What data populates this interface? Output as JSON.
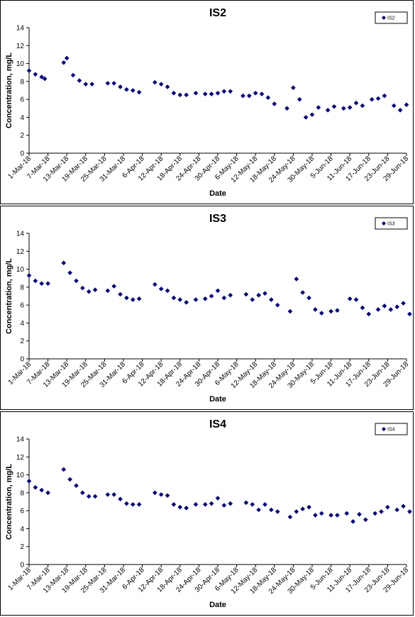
{
  "chart_data": [
    {
      "type": "scatter",
      "title": "IS2",
      "xlabel": "Date",
      "ylabel": "Concentration, mg/L",
      "ylim": [
        0,
        14
      ],
      "yticks": [
        0,
        2,
        4,
        6,
        8,
        10,
        12,
        14
      ],
      "xlim": [
        "1-Mar-18",
        "29-Jun-18"
      ],
      "xticks": [
        "1-Mar-18",
        "7-Mar-18",
        "13-Mar-18",
        "19-Mar-18",
        "25-Mar-18",
        "31-Mar-18",
        "6-Apr-18",
        "12-Apr-18",
        "18-Apr-18",
        "24-Apr-18",
        "30-Apr-18",
        "6-May-18",
        "12-May-18",
        "18-May-18",
        "24-May-18",
        "30-May-18",
        "5-Jun-18",
        "11-Jun-18",
        "17-Jun-18",
        "23-Jun-18",
        "29-Jun-18"
      ],
      "grid": false,
      "legend_position": "top-right",
      "marker_color": "#000080",
      "series": [
        {
          "name": "IS2",
          "points": [
            {
              "x": "1-Mar-18",
              "y": 9.2
            },
            {
              "x": "3-Mar-18",
              "y": 8.8
            },
            {
              "x": "5-Mar-18",
              "y": 8.5
            },
            {
              "x": "6-Mar-18",
              "y": 8.3
            },
            {
              "x": "12-Mar-18",
              "y": 10.1
            },
            {
              "x": "13-Mar-18",
              "y": 10.6
            },
            {
              "x": "15-Mar-18",
              "y": 8.7
            },
            {
              "x": "17-Mar-18",
              "y": 8.1
            },
            {
              "x": "19-Mar-18",
              "y": 7.7
            },
            {
              "x": "21-Mar-18",
              "y": 7.7
            },
            {
              "x": "26-Mar-18",
              "y": 7.8
            },
            {
              "x": "28-Mar-18",
              "y": 7.8
            },
            {
              "x": "30-Mar-18",
              "y": 7.4
            },
            {
              "x": "1-Apr-18",
              "y": 7.1
            },
            {
              "x": "3-Apr-18",
              "y": 7.0
            },
            {
              "x": "5-Apr-18",
              "y": 6.8
            },
            {
              "x": "10-Apr-18",
              "y": 7.9
            },
            {
              "x": "12-Apr-18",
              "y": 7.7
            },
            {
              "x": "14-Apr-18",
              "y": 7.4
            },
            {
              "x": "16-Apr-18",
              "y": 6.7
            },
            {
              "x": "18-Apr-18",
              "y": 6.5
            },
            {
              "x": "20-Apr-18",
              "y": 6.5
            },
            {
              "x": "23-Apr-18",
              "y": 6.7
            },
            {
              "x": "26-Apr-18",
              "y": 6.6
            },
            {
              "x": "28-Apr-18",
              "y": 6.6
            },
            {
              "x": "30-Apr-18",
              "y": 6.7
            },
            {
              "x": "2-May-18",
              "y": 6.9
            },
            {
              "x": "4-May-18",
              "y": 6.9
            },
            {
              "x": "8-May-18",
              "y": 6.4
            },
            {
              "x": "10-May-18",
              "y": 6.4
            },
            {
              "x": "12-May-18",
              "y": 6.7
            },
            {
              "x": "14-May-18",
              "y": 6.6
            },
            {
              "x": "16-May-18",
              "y": 6.2
            },
            {
              "x": "18-May-18",
              "y": 5.5
            },
            {
              "x": "22-May-18",
              "y": 5.0
            },
            {
              "x": "24-May-18",
              "y": 7.3
            },
            {
              "x": "26-May-18",
              "y": 6.0
            },
            {
              "x": "28-May-18",
              "y": 4.0
            },
            {
              "x": "30-May-18",
              "y": 4.3
            },
            {
              "x": "1-Jun-18",
              "y": 5.1
            },
            {
              "x": "4-Jun-18",
              "y": 4.8
            },
            {
              "x": "6-Jun-18",
              "y": 5.2
            },
            {
              "x": "9-Jun-18",
              "y": 5.0
            },
            {
              "x": "11-Jun-18",
              "y": 5.1
            },
            {
              "x": "13-Jun-18",
              "y": 5.6
            },
            {
              "x": "15-Jun-18",
              "y": 5.3
            },
            {
              "x": "18-Jun-18",
              "y": 6.0
            },
            {
              "x": "20-Jun-18",
              "y": 6.1
            },
            {
              "x": "22-Jun-18",
              "y": 6.4
            },
            {
              "x": "25-Jun-18",
              "y": 5.3
            },
            {
              "x": "27-Jun-18",
              "y": 4.8
            },
            {
              "x": "29-Jun-18",
              "y": 5.4
            }
          ]
        }
      ]
    },
    {
      "type": "scatter",
      "title": "IS3",
      "xlabel": "Date",
      "ylabel": "Concentration, mg/L",
      "ylim": [
        0,
        14
      ],
      "yticks": [
        0,
        2,
        4,
        6,
        8,
        10,
        12,
        14
      ],
      "xlim": [
        "1-Mar-18",
        "29-Jun-18"
      ],
      "xticks": [
        "1-Mar-18",
        "7-Mar-18",
        "13-Mar-18",
        "19-Mar-18",
        "25-Mar-18",
        "31-Mar-18",
        "6-Apr-18",
        "12-Apr-18",
        "18-Apr-18",
        "24-Apr-18",
        "30-Apr-18",
        "6-May-18",
        "12-May-18",
        "18-May-18",
        "24-May-18",
        "30-May-18",
        "5-Jun-18",
        "11-Jun-18",
        "17-Jun-18",
        "23-Jun-18",
        "29-Jun-18"
      ],
      "grid": false,
      "legend_position": "top-right",
      "marker_color": "#000080",
      "series": [
        {
          "name": "IS3",
          "points": [
            {
              "x": "1-Mar-18",
              "y": 9.3
            },
            {
              "x": "3-Mar-18",
              "y": 8.7
            },
            {
              "x": "5-Mar-18",
              "y": 8.4
            },
            {
              "x": "7-Mar-18",
              "y": 8.4
            },
            {
              "x": "12-Mar-18",
              "y": 10.7
            },
            {
              "x": "14-Mar-18",
              "y": 9.6
            },
            {
              "x": "16-Mar-18",
              "y": 8.7
            },
            {
              "x": "18-Mar-18",
              "y": 7.9
            },
            {
              "x": "20-Mar-18",
              "y": 7.5
            },
            {
              "x": "22-Mar-18",
              "y": 7.7
            },
            {
              "x": "26-Mar-18",
              "y": 7.6
            },
            {
              "x": "28-Mar-18",
              "y": 8.1
            },
            {
              "x": "30-Mar-18",
              "y": 7.2
            },
            {
              "x": "1-Apr-18",
              "y": 6.8
            },
            {
              "x": "3-Apr-18",
              "y": 6.6
            },
            {
              "x": "5-Apr-18",
              "y": 6.7
            },
            {
              "x": "10-Apr-18",
              "y": 8.3
            },
            {
              "x": "12-Apr-18",
              "y": 7.8
            },
            {
              "x": "14-Apr-18",
              "y": 7.6
            },
            {
              "x": "16-Apr-18",
              "y": 6.8
            },
            {
              "x": "18-Apr-18",
              "y": 6.6
            },
            {
              "x": "20-Apr-18",
              "y": 6.3
            },
            {
              "x": "23-Apr-18",
              "y": 6.6
            },
            {
              "x": "26-Apr-18",
              "y": 6.7
            },
            {
              "x": "28-Apr-18",
              "y": 7.0
            },
            {
              "x": "30-Apr-18",
              "y": 7.6
            },
            {
              "x": "2-May-18",
              "y": 6.8
            },
            {
              "x": "4-May-18",
              "y": 7.1
            },
            {
              "x": "9-May-18",
              "y": 7.2
            },
            {
              "x": "11-May-18",
              "y": 6.6
            },
            {
              "x": "13-May-18",
              "y": 7.1
            },
            {
              "x": "15-May-18",
              "y": 7.3
            },
            {
              "x": "17-May-18",
              "y": 6.6
            },
            {
              "x": "19-May-18",
              "y": 6.0
            },
            {
              "x": "23-May-18",
              "y": 5.3
            },
            {
              "x": "25-May-18",
              "y": 8.9
            },
            {
              "x": "27-May-18",
              "y": 7.4
            },
            {
              "x": "29-May-18",
              "y": 6.8
            },
            {
              "x": "31-May-18",
              "y": 5.5
            },
            {
              "x": "2-Jun-18",
              "y": 5.1
            },
            {
              "x": "5-Jun-18",
              "y": 5.3
            },
            {
              "x": "7-Jun-18",
              "y": 5.4
            },
            {
              "x": "11-Jun-18",
              "y": 6.7
            },
            {
              "x": "13-Jun-18",
              "y": 6.6
            },
            {
              "x": "15-Jun-18",
              "y": 5.7
            },
            {
              "x": "17-Jun-18",
              "y": 5.0
            },
            {
              "x": "20-Jun-18",
              "y": 5.5
            },
            {
              "x": "22-Jun-18",
              "y": 5.9
            },
            {
              "x": "24-Jun-18",
              "y": 5.5
            },
            {
              "x": "26-Jun-18",
              "y": 5.8
            },
            {
              "x": "28-Jun-18",
              "y": 6.2
            },
            {
              "x": "30-Jun-18",
              "y": 5.0
            }
          ]
        }
      ]
    },
    {
      "type": "scatter",
      "title": "IS4",
      "xlabel": "Date",
      "ylabel": "Concentration, mg/L",
      "ylim": [
        0,
        14
      ],
      "yticks": [
        0,
        2,
        4,
        6,
        8,
        10,
        12,
        14
      ],
      "xlim": [
        "1-Mar-18",
        "29-Jun-18"
      ],
      "xticks": [
        "1-Mar-18",
        "7-Mar-18",
        "13-Mar-18",
        "19-Mar-18",
        "25-Mar-18",
        "31-Mar-18",
        "6-Apr-18",
        "12-Apr-18",
        "18-Apr-18",
        "24-Apr-18",
        "30-Apr-18",
        "6-May-18",
        "12-May-18",
        "18-May-18",
        "24-May-18",
        "30-May-18",
        "5-Jun-18",
        "11-Jun-18",
        "17-Jun-18",
        "23-Jun-18",
        "29-Jun-18"
      ],
      "grid": false,
      "legend_position": "top-right",
      "marker_color": "#000080",
      "series": [
        {
          "name": "IS4",
          "points": [
            {
              "x": "1-Mar-18",
              "y": 9.3
            },
            {
              "x": "3-Mar-18",
              "y": 8.6
            },
            {
              "x": "5-Mar-18",
              "y": 8.3
            },
            {
              "x": "7-Mar-18",
              "y": 8.0
            },
            {
              "x": "12-Mar-18",
              "y": 10.6
            },
            {
              "x": "14-Mar-18",
              "y": 9.5
            },
            {
              "x": "16-Mar-18",
              "y": 8.8
            },
            {
              "x": "18-Mar-18",
              "y": 8.0
            },
            {
              "x": "20-Mar-18",
              "y": 7.6
            },
            {
              "x": "22-Mar-18",
              "y": 7.6
            },
            {
              "x": "26-Mar-18",
              "y": 7.8
            },
            {
              "x": "28-Mar-18",
              "y": 7.8
            },
            {
              "x": "30-Mar-18",
              "y": 7.3
            },
            {
              "x": "1-Apr-18",
              "y": 6.8
            },
            {
              "x": "3-Apr-18",
              "y": 6.7
            },
            {
              "x": "5-Apr-18",
              "y": 6.7
            },
            {
              "x": "10-Apr-18",
              "y": 8.0
            },
            {
              "x": "12-Apr-18",
              "y": 7.8
            },
            {
              "x": "14-Apr-18",
              "y": 7.7
            },
            {
              "x": "16-Apr-18",
              "y": 6.7
            },
            {
              "x": "18-Apr-18",
              "y": 6.4
            },
            {
              "x": "20-Apr-18",
              "y": 6.3
            },
            {
              "x": "23-Apr-18",
              "y": 6.7
            },
            {
              "x": "26-Apr-18",
              "y": 6.7
            },
            {
              "x": "28-Apr-18",
              "y": 6.8
            },
            {
              "x": "30-Apr-18",
              "y": 7.4
            },
            {
              "x": "2-May-18",
              "y": 6.6
            },
            {
              "x": "4-May-18",
              "y": 6.8
            },
            {
              "x": "9-May-18",
              "y": 6.9
            },
            {
              "x": "11-May-18",
              "y": 6.7
            },
            {
              "x": "13-May-18",
              "y": 6.1
            },
            {
              "x": "15-May-18",
              "y": 6.7
            },
            {
              "x": "17-May-18",
              "y": 6.1
            },
            {
              "x": "19-May-18",
              "y": 5.9
            },
            {
              "x": "23-May-18",
              "y": 5.3
            },
            {
              "x": "25-May-18",
              "y": 5.9
            },
            {
              "x": "27-May-18",
              "y": 6.2
            },
            {
              "x": "29-May-18",
              "y": 6.4
            },
            {
              "x": "31-May-18",
              "y": 5.5
            },
            {
              "x": "2-Jun-18",
              "y": 5.7
            },
            {
              "x": "5-Jun-18",
              "y": 5.5
            },
            {
              "x": "7-Jun-18",
              "y": 5.5
            },
            {
              "x": "10-Jun-18",
              "y": 5.7
            },
            {
              "x": "12-Jun-18",
              "y": 4.8
            },
            {
              "x": "14-Jun-18",
              "y": 5.6
            },
            {
              "x": "16-Jun-18",
              "y": 5.0
            },
            {
              "x": "19-Jun-18",
              "y": 5.7
            },
            {
              "x": "21-Jun-18",
              "y": 5.9
            },
            {
              "x": "23-Jun-18",
              "y": 6.4
            },
            {
              "x": "26-Jun-18",
              "y": 6.1
            },
            {
              "x": "28-Jun-18",
              "y": 6.5
            },
            {
              "x": "30-Jun-18",
              "y": 5.9
            }
          ]
        }
      ]
    }
  ]
}
